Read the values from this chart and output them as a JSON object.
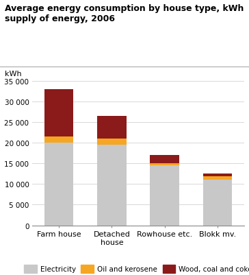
{
  "title": "Average energy consumption by house type, kWh\nsupply of energy, 2006",
  "ylabel": "kWh",
  "categories": [
    "Farm house",
    "Detached\nhouse",
    "Rowhouse etc.",
    "Blokk mv."
  ],
  "electricity": [
    20000,
    19500,
    14500,
    11000
  ],
  "oil_kerosene": [
    1500,
    1500,
    500,
    800
  ],
  "wood_coal_coke": [
    11500,
    5500,
    2000,
    700
  ],
  "colors": {
    "electricity": "#c8c8c8",
    "oil_kerosene": "#f5a623",
    "wood_coal_coke": "#8b1a1a"
  },
  "legend_labels": [
    "Electricity",
    "Oil and kerosene",
    "Wood, coal and coke"
  ],
  "ylim": [
    0,
    36000
  ],
  "yticks": [
    0,
    5000,
    10000,
    15000,
    20000,
    25000,
    30000,
    35000
  ],
  "ytick_labels": [
    "0",
    "5 000",
    "10 000",
    "15 000",
    "20 000",
    "25 000",
    "30 000",
    "35 000"
  ],
  "background_color": "#ffffff",
  "grid_color": "#d8d8d8",
  "title_fontsize": 9.0,
  "label_fontsize": 8.0,
  "tick_fontsize": 7.5
}
